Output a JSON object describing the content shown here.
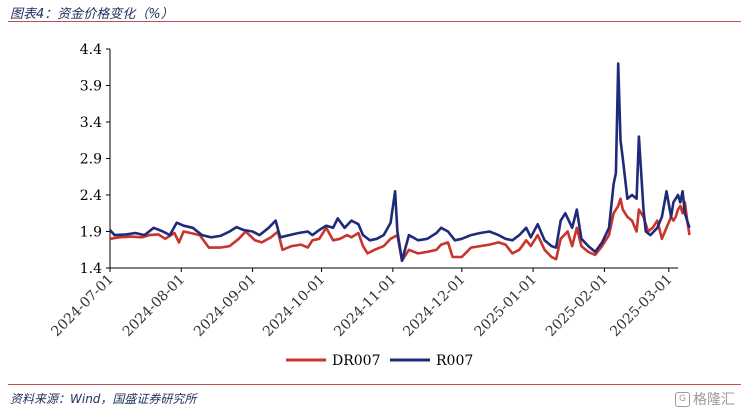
{
  "header": {
    "title": "图表4：资金价格变化（%）"
  },
  "footer": {
    "source": "资料来源：Wind，国盛证券研究所",
    "watermark": "格隆汇"
  },
  "colors": {
    "dr007": "#c9342b",
    "r007": "#1f2a7a",
    "rule": "#c0504d",
    "text": "#1f2f5c"
  },
  "chart_data": {
    "type": "line",
    "x_type": "date",
    "xlim": [
      "2024-07-01",
      "2025-03-05"
    ],
    "ylim": [
      1.4,
      4.4
    ],
    "yticks": [
      "1.4",
      "1.9",
      "2.4",
      "2.9",
      "3.4",
      "3.9",
      "4.4"
    ],
    "xticks": [
      "2024-07-01",
      "2024-08-01",
      "2024-09-01",
      "2024-10-01",
      "2024-11-01",
      "2024-12-01",
      "2025-01-01",
      "2025-02-01",
      "2025-03-01"
    ],
    "grid": false,
    "legend": "bottom-center",
    "series": [
      {
        "name": "DR007",
        "color": "#c9342b",
        "points": [
          [
            "2024-07-01",
            1.8
          ],
          [
            "2024-07-05",
            1.82
          ],
          [
            "2024-07-10",
            1.83
          ],
          [
            "2024-07-15",
            1.82
          ],
          [
            "2024-07-18",
            1.85
          ],
          [
            "2024-07-22",
            1.86
          ],
          [
            "2024-07-25",
            1.8
          ],
          [
            "2024-07-29",
            1.88
          ],
          [
            "2024-07-31",
            1.75
          ],
          [
            "2024-08-02",
            1.9
          ],
          [
            "2024-08-05",
            1.88
          ],
          [
            "2024-08-09",
            1.85
          ],
          [
            "2024-08-13",
            1.68
          ],
          [
            "2024-08-18",
            1.68
          ],
          [
            "2024-08-22",
            1.7
          ],
          [
            "2024-08-26",
            1.8
          ],
          [
            "2024-08-29",
            1.9
          ],
          [
            "2024-09-02",
            1.78
          ],
          [
            "2024-09-05",
            1.75
          ],
          [
            "2024-09-09",
            1.82
          ],
          [
            "2024-09-12",
            1.9
          ],
          [
            "2024-09-14",
            1.65
          ],
          [
            "2024-09-18",
            1.7
          ],
          [
            "2024-09-22",
            1.72
          ],
          [
            "2024-09-25",
            1.68
          ],
          [
            "2024-09-27",
            1.78
          ],
          [
            "2024-09-30",
            1.8
          ],
          [
            "2024-10-03",
            1.95
          ],
          [
            "2024-10-06",
            1.78
          ],
          [
            "2024-10-09",
            1.8
          ],
          [
            "2024-10-12",
            1.85
          ],
          [
            "2024-10-14",
            1.82
          ],
          [
            "2024-10-17",
            1.88
          ],
          [
            "2024-10-19",
            1.7
          ],
          [
            "2024-10-21",
            1.6
          ],
          [
            "2024-10-24",
            1.65
          ],
          [
            "2024-10-28",
            1.7
          ],
          [
            "2024-10-31",
            1.8
          ],
          [
            "2024-11-03",
            1.85
          ],
          [
            "2024-11-05",
            1.5
          ],
          [
            "2024-11-08",
            1.65
          ],
          [
            "2024-11-12",
            1.6
          ],
          [
            "2024-11-16",
            1.62
          ],
          [
            "2024-11-20",
            1.65
          ],
          [
            "2024-11-22",
            1.72
          ],
          [
            "2024-11-25",
            1.75
          ],
          [
            "2024-11-27",
            1.55
          ],
          [
            "2024-12-01",
            1.55
          ],
          [
            "2024-12-05",
            1.68
          ],
          [
            "2024-12-09",
            1.7
          ],
          [
            "2024-12-13",
            1.72
          ],
          [
            "2024-12-17",
            1.75
          ],
          [
            "2024-12-20",
            1.72
          ],
          [
            "2024-12-23",
            1.6
          ],
          [
            "2024-12-26",
            1.65
          ],
          [
            "2024-12-29",
            1.78
          ],
          [
            "2024-12-31",
            1.7
          ],
          [
            "2025-01-03",
            1.85
          ],
          [
            "2025-01-06",
            1.65
          ],
          [
            "2025-01-09",
            1.55
          ],
          [
            "2025-01-11",
            1.52
          ],
          [
            "2025-01-13",
            1.8
          ],
          [
            "2025-01-16",
            1.9
          ],
          [
            "2025-01-18",
            1.7
          ],
          [
            "2025-01-20",
            1.95
          ],
          [
            "2025-01-22",
            1.7
          ],
          [
            "2025-01-25",
            1.62
          ],
          [
            "2025-01-28",
            1.58
          ],
          [
            "2025-01-31",
            1.7
          ],
          [
            "2025-02-03",
            1.85
          ],
          [
            "2025-02-05",
            2.15
          ],
          [
            "2025-02-07",
            2.25
          ],
          [
            "2025-02-08",
            2.35
          ],
          [
            "2025-02-09",
            2.2
          ],
          [
            "2025-02-11",
            2.1
          ],
          [
            "2025-02-13",
            2.05
          ],
          [
            "2025-02-15",
            1.9
          ],
          [
            "2025-02-16",
            2.2
          ],
          [
            "2025-02-18",
            2.1
          ],
          [
            "2025-02-20",
            1.9
          ],
          [
            "2025-02-22",
            1.95
          ],
          [
            "2025-02-24",
            2.05
          ],
          [
            "2025-02-26",
            1.8
          ],
          [
            "2025-02-28",
            1.95
          ],
          [
            "2025-03-02",
            2.1
          ],
          [
            "2025-03-03",
            2.05
          ],
          [
            "2025-03-04",
            2.1
          ],
          [
            "2025-03-05",
            2.2
          ],
          [
            "2025-03-06",
            2.25
          ],
          [
            "2025-03-07",
            2.15
          ],
          [
            "2025-03-08",
            2.3
          ],
          [
            "2025-03-09",
            2.05
          ],
          [
            "2025-03-10",
            1.85
          ]
        ]
      },
      {
        "name": "R007",
        "color": "#1f2a7a",
        "points": [
          [
            "2024-07-01",
            1.92
          ],
          [
            "2024-07-03",
            1.85
          ],
          [
            "2024-07-08",
            1.86
          ],
          [
            "2024-07-12",
            1.88
          ],
          [
            "2024-07-16",
            1.85
          ],
          [
            "2024-07-20",
            1.95
          ],
          [
            "2024-07-24",
            1.9
          ],
          [
            "2024-07-27",
            1.85
          ],
          [
            "2024-07-30",
            2.02
          ],
          [
            "2024-08-02",
            1.98
          ],
          [
            "2024-08-06",
            1.95
          ],
          [
            "2024-08-10",
            1.85
          ],
          [
            "2024-08-14",
            1.82
          ],
          [
            "2024-08-18",
            1.84
          ],
          [
            "2024-08-22",
            1.9
          ],
          [
            "2024-08-25",
            1.96
          ],
          [
            "2024-08-28",
            1.92
          ],
          [
            "2024-09-01",
            1.9
          ],
          [
            "2024-09-04",
            1.85
          ],
          [
            "2024-09-08",
            1.95
          ],
          [
            "2024-09-11",
            2.05
          ],
          [
            "2024-09-13",
            1.82
          ],
          [
            "2024-09-17",
            1.85
          ],
          [
            "2024-09-21",
            1.88
          ],
          [
            "2024-09-25",
            1.9
          ],
          [
            "2024-09-27",
            1.85
          ],
          [
            "2024-09-30",
            1.92
          ],
          [
            "2024-10-03",
            1.98
          ],
          [
            "2024-10-06",
            1.95
          ],
          [
            "2024-10-08",
            2.08
          ],
          [
            "2024-10-11",
            1.95
          ],
          [
            "2024-10-14",
            2.05
          ],
          [
            "2024-10-17",
            2.0
          ],
          [
            "2024-10-19",
            1.85
          ],
          [
            "2024-10-22",
            1.78
          ],
          [
            "2024-10-25",
            1.8
          ],
          [
            "2024-10-28",
            1.85
          ],
          [
            "2024-10-31",
            2.02
          ],
          [
            "2024-11-02",
            2.45
          ],
          [
            "2024-11-03",
            1.9
          ],
          [
            "2024-11-05",
            1.5
          ],
          [
            "2024-11-08",
            1.85
          ],
          [
            "2024-11-12",
            1.78
          ],
          [
            "2024-11-16",
            1.8
          ],
          [
            "2024-11-20",
            1.88
          ],
          [
            "2024-11-22",
            1.95
          ],
          [
            "2024-11-25",
            1.9
          ],
          [
            "2024-11-28",
            1.78
          ],
          [
            "2024-12-01",
            1.8
          ],
          [
            "2024-12-05",
            1.85
          ],
          [
            "2024-12-09",
            1.88
          ],
          [
            "2024-12-13",
            1.9
          ],
          [
            "2024-12-17",
            1.85
          ],
          [
            "2024-12-20",
            1.8
          ],
          [
            "2024-12-23",
            1.78
          ],
          [
            "2024-12-26",
            1.85
          ],
          [
            "2024-12-29",
            1.95
          ],
          [
            "2024-12-31",
            1.82
          ],
          [
            "2025-01-03",
            2.0
          ],
          [
            "2025-01-06",
            1.78
          ],
          [
            "2025-01-09",
            1.7
          ],
          [
            "2025-01-11",
            1.68
          ],
          [
            "2025-01-13",
            2.05
          ],
          [
            "2025-01-15",
            2.15
          ],
          [
            "2025-01-18",
            1.95
          ],
          [
            "2025-01-20",
            2.2
          ],
          [
            "2025-01-22",
            1.8
          ],
          [
            "2025-01-25",
            1.7
          ],
          [
            "2025-01-28",
            1.62
          ],
          [
            "2025-01-31",
            1.75
          ],
          [
            "2025-02-03",
            1.95
          ],
          [
            "2025-02-05",
            2.55
          ],
          [
            "2025-02-06",
            2.7
          ],
          [
            "2025-02-07",
            4.2
          ],
          [
            "2025-02-08",
            3.15
          ],
          [
            "2025-02-09",
            2.9
          ],
          [
            "2025-02-11",
            2.35
          ],
          [
            "2025-02-13",
            2.4
          ],
          [
            "2025-02-15",
            2.35
          ],
          [
            "2025-02-16",
            3.2
          ],
          [
            "2025-02-18",
            2.2
          ],
          [
            "2025-02-19",
            1.9
          ],
          [
            "2025-02-21",
            1.85
          ],
          [
            "2025-02-24",
            1.95
          ],
          [
            "2025-02-26",
            2.1
          ],
          [
            "2025-02-28",
            2.45
          ],
          [
            "2025-03-02",
            2.1
          ],
          [
            "2025-03-03",
            2.3
          ],
          [
            "2025-03-04",
            2.35
          ],
          [
            "2025-03-05",
            2.4
          ],
          [
            "2025-03-06",
            2.3
          ],
          [
            "2025-03-07",
            2.45
          ],
          [
            "2025-03-08",
            2.15
          ],
          [
            "2025-03-09",
            2.05
          ],
          [
            "2025-03-10",
            1.95
          ]
        ]
      }
    ]
  }
}
